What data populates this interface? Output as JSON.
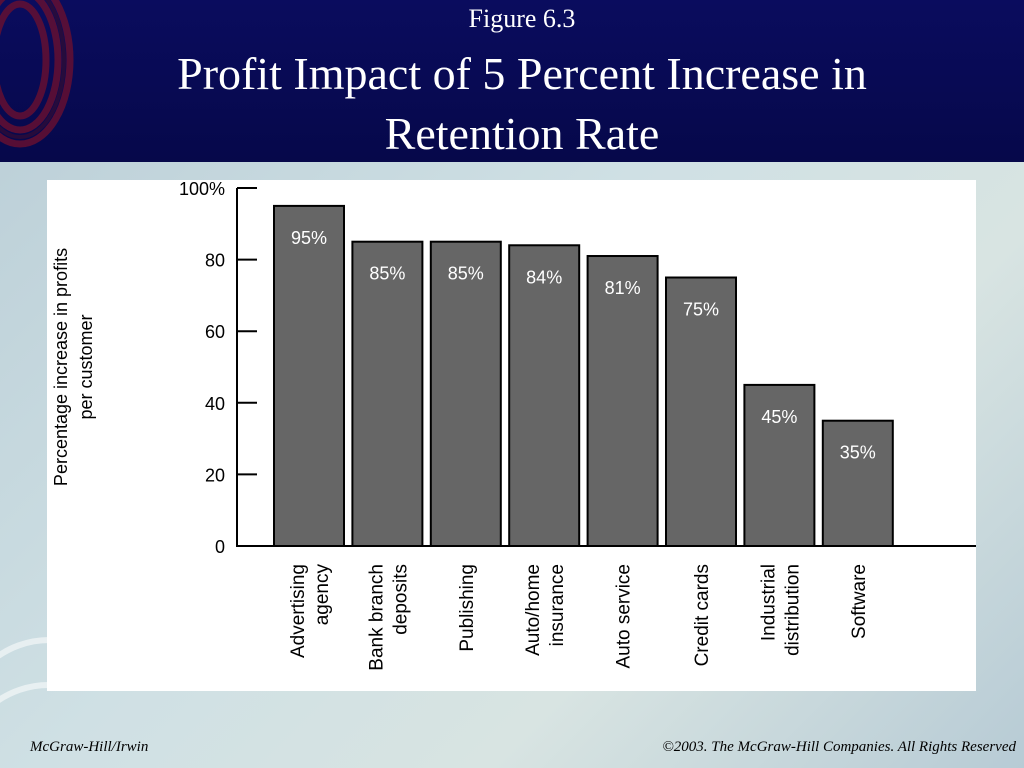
{
  "slide": {
    "figure_label": "Figure 6.3",
    "title_line1": "Profit Impact of 5 Percent Increase in",
    "title_line2": "Retention Rate",
    "footer_left": "McGraw-Hill/Irwin",
    "footer_right": "©2003. The McGraw-Hill Companies. All Rights Reserved"
  },
  "colors": {
    "header_bg": "#06084a",
    "bar_fill": "#666666",
    "bar_label": "#ffffff",
    "axis": "#000000"
  },
  "chart_data": {
    "type": "bar",
    "title": "",
    "ylabel_line1": "Percentage increase in profits",
    "ylabel_line2": "per customer",
    "xlabel": "",
    "ylim": [
      0,
      100
    ],
    "yticks": [
      {
        "value": 0,
        "label": "0"
      },
      {
        "value": 20,
        "label": "20"
      },
      {
        "value": 40,
        "label": "40"
      },
      {
        "value": 60,
        "label": "60"
      },
      {
        "value": 80,
        "label": "80"
      },
      {
        "value": 100,
        "label": "100%"
      }
    ],
    "categories": [
      {
        "lines": [
          "Advertising",
          "agency"
        ]
      },
      {
        "lines": [
          "Bank branch",
          "deposits"
        ]
      },
      {
        "lines": [
          "Publishing"
        ]
      },
      {
        "lines": [
          "Auto/home",
          "insurance"
        ]
      },
      {
        "lines": [
          "Auto service"
        ]
      },
      {
        "lines": [
          "Credit cards"
        ]
      },
      {
        "lines": [
          "Industrial",
          "distribution"
        ]
      },
      {
        "lines": [
          "Software"
        ]
      }
    ],
    "values": [
      95,
      85,
      85,
      84,
      81,
      75,
      45,
      35
    ],
    "value_labels": [
      "95%",
      "85%",
      "85%",
      "84%",
      "81%",
      "75%",
      "45%",
      "35%"
    ],
    "grid": false,
    "legend": "none"
  }
}
